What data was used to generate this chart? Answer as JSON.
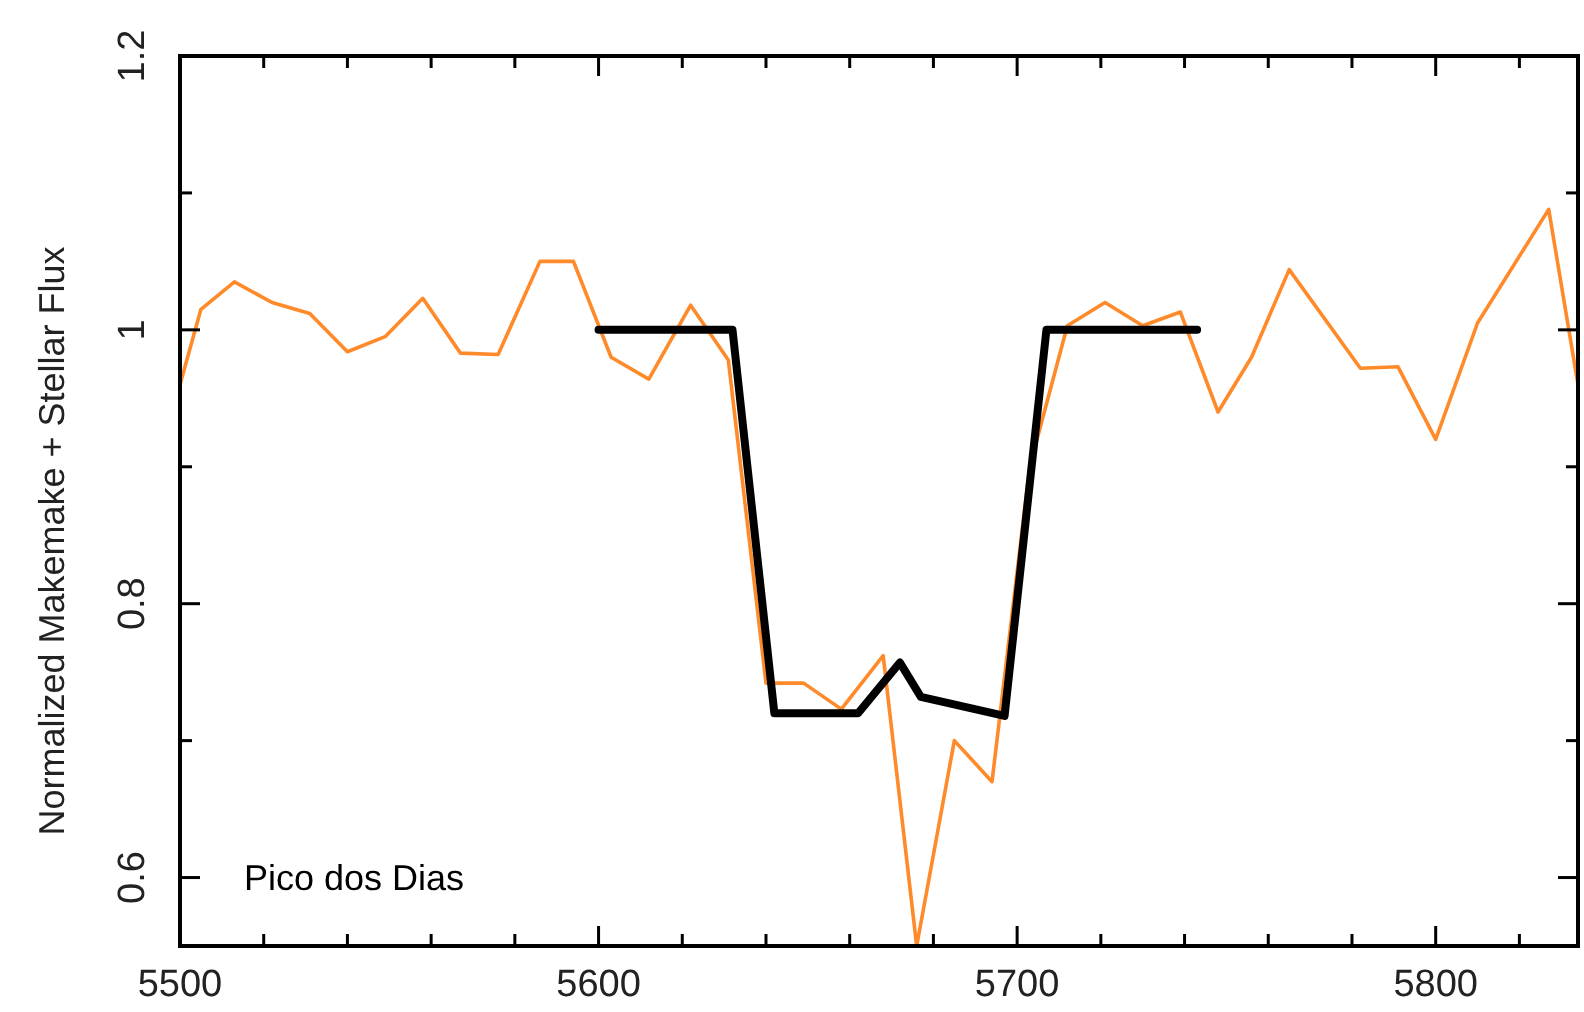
{
  "chart_data": {
    "type": "line",
    "ylabel": "Normalized Makemake + Stellar Flux",
    "annotations": [
      "Pico dos Dias"
    ],
    "xlim": [
      5500,
      5834
    ],
    "ylim": [
      0.55,
      1.2
    ],
    "xticks": [
      5500,
      {
        "value": 5520,
        "label": null
      },
      {
        "value": 5540,
        "label": null
      },
      {
        "value": 5560,
        "label": null
      },
      {
        "value": 5580,
        "label": null
      },
      5600,
      {
        "value": 5620,
        "label": null
      },
      {
        "value": 5640,
        "label": null
      },
      {
        "value": 5660,
        "label": null
      },
      {
        "value": 5680,
        "label": null
      },
      5700,
      {
        "value": 5720,
        "label": null
      },
      {
        "value": 5740,
        "label": null
      },
      {
        "value": 5760,
        "label": null
      },
      {
        "value": 5780,
        "label": null
      },
      5800,
      {
        "value": 5820,
        "label": null
      }
    ],
    "yticks": [
      0.6,
      {
        "value": 0.7,
        "label": null
      },
      0.8,
      {
        "value": 0.9,
        "label": null
      },
      1,
      {
        "value": 1.1,
        "label": null
      },
      1.2
    ],
    "grid": false,
    "marker": "none",
    "line_style": "solid",
    "series": [
      {
        "color": "#ff8a2a",
        "x": [
          5500,
          5505,
          5513,
          5522,
          5531,
          5540,
          5549,
          5558,
          5567,
          5576,
          5586,
          5594,
          5603,
          5612,
          5622,
          5631,
          5640,
          5649,
          5658,
          5668,
          5676,
          5685,
          5694,
          5703,
          5712,
          5721,
          5730,
          5739,
          5748,
          5756,
          5765,
          5782,
          5791,
          5800,
          5810,
          5827,
          5834
        ],
        "values": [
          0.96,
          1.015,
          1.035,
          1.02,
          1.012,
          0.984,
          0.995,
          1.023,
          0.983,
          0.982,
          1.05,
          1.05,
          0.98,
          0.964,
          1.018,
          0.978,
          0.742,
          0.742,
          0.723,
          0.762,
          0.55,
          0.7,
          0.67,
          0.9,
          1.003,
          1.02,
          1.003,
          1.013,
          0.94,
          0.98,
          1.044,
          0.972,
          0.973,
          0.92,
          1.005,
          1.088,
          0.96
        ]
      },
      {
        "color": "#000000",
        "x": [
          5600,
          5632,
          5642,
          5662,
          5672,
          5677,
          5697,
          5707,
          5743
        ],
        "values": [
          1.0,
          1.0,
          0.72,
          0.72,
          0.757,
          0.732,
          0.718,
          1.0,
          1.0
        ]
      }
    ]
  }
}
